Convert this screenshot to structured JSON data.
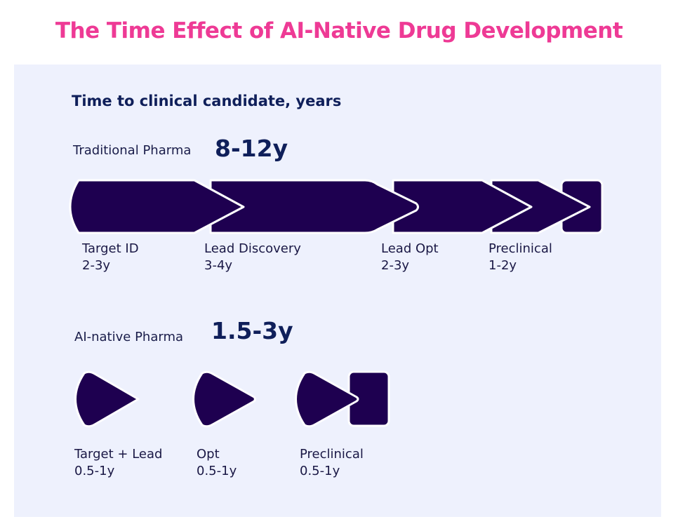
{
  "title": "The Time Effect of AI-Native Drug Development",
  "heading": "Time to clinical candidate, years",
  "traditional": {
    "label": "Traditional Pharma",
    "total": "8-12y",
    "stages": [
      {
        "name": "Target ID",
        "time": "2-3y"
      },
      {
        "name": "Lead Discovery",
        "time": "3-4y"
      },
      {
        "name": "Lead Opt",
        "time": "2-3y"
      },
      {
        "name": "Preclinical",
        "time": "1-2y"
      }
    ]
  },
  "ai_native": {
    "label": "AI-native Pharma",
    "total": "1.5-3y",
    "stages": [
      {
        "name": "Target + Lead",
        "time": "0.5-1y"
      },
      {
        "name": "Opt",
        "time": "0.5-1y"
      },
      {
        "name": "Preclinical",
        "time": "0.5-1y"
      }
    ]
  },
  "colors": {
    "title": "#ee3a95",
    "shape": "#1e0050",
    "panel": "#eef1fd",
    "heading": "#0f1f5a"
  }
}
